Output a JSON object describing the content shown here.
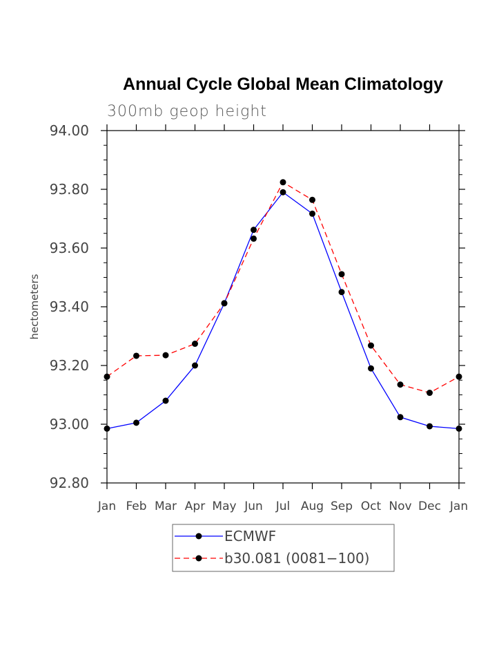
{
  "chart_data": {
    "type": "line",
    "title": "Annual Cycle Global Mean Climatology",
    "subtitle": "300mb geop height",
    "xlabel": "",
    "ylabel": "hectometers",
    "categories": [
      "Jan",
      "Feb",
      "Mar",
      "Apr",
      "May",
      "Jun",
      "Jul",
      "Aug",
      "Sep",
      "Oct",
      "Nov",
      "Dec",
      "Jan"
    ],
    "ylim": [
      92.8,
      94.0
    ],
    "yticks": [
      "92.80",
      "93.00",
      "93.20",
      "93.40",
      "93.60",
      "93.80",
      "94.00"
    ],
    "grid": false,
    "legend_position": "bottom",
    "series": [
      {
        "name": "ECMWF",
        "color": "#0000ff",
        "dash": "solid",
        "values": [
          92.985,
          93.005,
          93.08,
          93.2,
          93.412,
          93.662,
          93.79,
          93.717,
          93.45,
          93.19,
          93.024,
          92.993,
          92.985
        ]
      },
      {
        "name": "b30.081 (0081−100)",
        "color": "#ff0000",
        "dash": "dashed",
        "values": [
          93.162,
          93.233,
          93.235,
          93.274,
          93.412,
          93.632,
          93.824,
          93.764,
          93.511,
          93.268,
          93.135,
          93.107,
          93.162
        ]
      }
    ]
  }
}
